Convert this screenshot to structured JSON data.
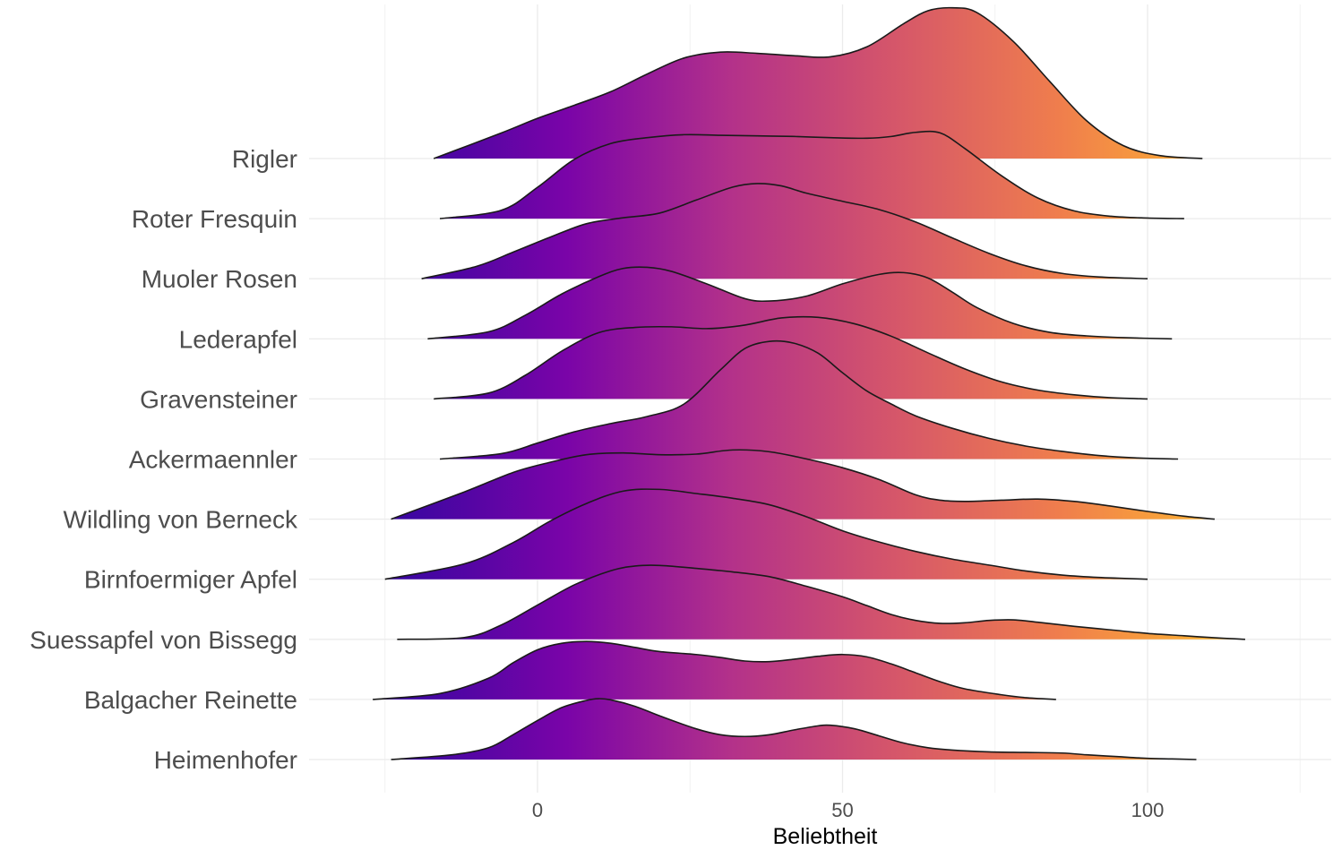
{
  "chart_data": {
    "type": "area",
    "subtype": "ridgeline",
    "xlabel": "Beliebtheit",
    "ylabel": "",
    "xlim": [
      -25,
      127
    ],
    "x_ticks": [
      0,
      50,
      100
    ],
    "grid": true,
    "legend": "none",
    "fill_gradient": [
      "#3b06a1",
      "#7a04a8",
      "#b3318a",
      "#d5566a",
      "#ef7d4d",
      "#fdb431"
    ],
    "outline_color": "#1a1a1a",
    "series": [
      {
        "name": "Heimenhofer",
        "x": [
          -24,
          -14,
          -8,
          -4,
          0,
          4,
          8,
          10,
          12,
          16,
          20,
          26,
          30,
          34,
          38,
          42,
          46,
          48,
          52,
          56,
          60,
          64,
          68,
          74,
          80,
          86,
          90,
          95,
          100,
          104,
          108
        ],
        "y": [
          0,
          0.08,
          0.2,
          0.42,
          0.66,
          0.88,
          1.0,
          1.03,
          1.01,
          0.9,
          0.74,
          0.52,
          0.42,
          0.39,
          0.42,
          0.5,
          0.57,
          0.58,
          0.52,
          0.4,
          0.28,
          0.2,
          0.16,
          0.13,
          0.12,
          0.11,
          0.08,
          0.05,
          0.02,
          0.01,
          0
        ]
      },
      {
        "name": "Balgacher Reinette",
        "x": [
          -27,
          -16,
          -8,
          -4,
          0,
          4,
          8,
          12,
          16,
          20,
          26,
          30,
          34,
          38,
          42,
          46,
          50,
          54,
          58,
          62,
          66,
          70,
          76,
          80,
          85
        ],
        "y": [
          0,
          0.1,
          0.36,
          0.62,
          0.84,
          0.95,
          0.98,
          0.95,
          0.88,
          0.81,
          0.76,
          0.71,
          0.65,
          0.64,
          0.68,
          0.73,
          0.76,
          0.72,
          0.6,
          0.45,
          0.3,
          0.18,
          0.08,
          0.03,
          0
        ]
      },
      {
        "name": "Suessapfel von Bissegg",
        "x": [
          -23,
          -12,
          -6,
          0,
          6,
          12,
          16,
          20,
          26,
          32,
          38,
          44,
          50,
          54,
          58,
          62,
          66,
          70,
          74,
          78,
          82,
          88,
          94,
          100,
          106,
          112,
          116
        ],
        "y": [
          0,
          0.03,
          0.24,
          0.58,
          0.92,
          1.16,
          1.24,
          1.25,
          1.2,
          1.14,
          1.06,
          0.9,
          0.72,
          0.57,
          0.42,
          0.32,
          0.27,
          0.28,
          0.32,
          0.33,
          0.29,
          0.22,
          0.16,
          0.1,
          0.06,
          0.02,
          0
        ]
      },
      {
        "name": "Birnfoermiger Apfel",
        "x": [
          -25,
          -12,
          -4,
          2,
          8,
          14,
          20,
          26,
          32,
          38,
          44,
          50,
          56,
          62,
          68,
          74,
          80,
          86,
          92,
          100
        ],
        "y": [
          0,
          0.26,
          0.62,
          0.98,
          1.28,
          1.49,
          1.52,
          1.45,
          1.37,
          1.26,
          1.06,
          0.82,
          0.63,
          0.47,
          0.34,
          0.24,
          0.14,
          0.07,
          0.03,
          0
        ]
      },
      {
        "name": "Wildling von Berneck",
        "x": [
          -24,
          -12,
          -4,
          2,
          8,
          14,
          20,
          26,
          32,
          38,
          44,
          50,
          56,
          62,
          66,
          70,
          76,
          82,
          88,
          94,
          100,
          106,
          111
        ],
        "y": [
          0,
          0.46,
          0.79,
          0.96,
          1.09,
          1.12,
          1.09,
          1.1,
          1.17,
          1.14,
          1.02,
          0.87,
          0.67,
          0.41,
          0.32,
          0.3,
          0.32,
          0.34,
          0.3,
          0.22,
          0.13,
          0.05,
          0
        ]
      },
      {
        "name": "Ackermaennler",
        "x": [
          -16,
          -6,
          0,
          6,
          12,
          18,
          24,
          30,
          34,
          38,
          42,
          46,
          50,
          54,
          58,
          62,
          68,
          74,
          80,
          86,
          92,
          98,
          105
        ],
        "y": [
          0,
          0.09,
          0.27,
          0.46,
          0.6,
          0.72,
          0.93,
          1.51,
          1.87,
          1.99,
          1.96,
          1.79,
          1.46,
          1.15,
          0.93,
          0.73,
          0.52,
          0.35,
          0.22,
          0.13,
          0.06,
          0.02,
          0
        ]
      },
      {
        "name": "Gravensteiner",
        "x": [
          -17,
          -8,
          -2,
          4,
          10,
          16,
          22,
          28,
          34,
          40,
          46,
          52,
          58,
          64,
          70,
          76,
          82,
          88,
          94,
          100
        ],
        "y": [
          0,
          0.1,
          0.4,
          0.81,
          1.12,
          1.21,
          1.22,
          1.19,
          1.25,
          1.37,
          1.38,
          1.27,
          1.06,
          0.78,
          0.51,
          0.29,
          0.15,
          0.07,
          0.02,
          0
        ]
      },
      {
        "name": "Lederapfel",
        "x": [
          -18,
          -8,
          -2,
          4,
          10,
          14,
          18,
          22,
          28,
          34,
          38,
          44,
          50,
          56,
          60,
          64,
          68,
          72,
          78,
          84,
          90,
          96,
          104
        ],
        "y": [
          0,
          0.12,
          0.4,
          0.76,
          1.05,
          1.19,
          1.21,
          1.14,
          0.92,
          0.68,
          0.64,
          0.72,
          0.93,
          1.09,
          1.12,
          1.03,
          0.79,
          0.53,
          0.26,
          0.11,
          0.05,
          0.02,
          0
        ]
      },
      {
        "name": "Muoler Rosen",
        "x": [
          -19,
          -10,
          -4,
          2,
          8,
          14,
          20,
          26,
          32,
          36,
          40,
          44,
          50,
          56,
          62,
          68,
          74,
          80,
          86,
          92,
          100
        ],
        "y": [
          0,
          0.21,
          0.45,
          0.7,
          0.93,
          1.03,
          1.11,
          1.33,
          1.55,
          1.61,
          1.57,
          1.45,
          1.31,
          1.17,
          0.96,
          0.69,
          0.43,
          0.22,
          0.09,
          0.03,
          0
        ]
      },
      {
        "name": "Roter Fresquin",
        "x": [
          -16,
          -6,
          0,
          6,
          12,
          18,
          24,
          30,
          36,
          42,
          48,
          54,
          58,
          62,
          66,
          70,
          76,
          82,
          88,
          94,
          100,
          106
        ],
        "y": [
          0,
          0.14,
          0.53,
          1.0,
          1.27,
          1.37,
          1.42,
          1.41,
          1.4,
          1.39,
          1.37,
          1.36,
          1.39,
          1.46,
          1.45,
          1.19,
          0.73,
          0.35,
          0.13,
          0.04,
          0.01,
          0
        ]
      },
      {
        "name": "Rigler",
        "x": [
          -17,
          -6,
          0,
          6,
          12,
          18,
          24,
          30,
          36,
          42,
          48,
          54,
          60,
          64,
          68,
          72,
          78,
          84,
          90,
          96,
          102,
          109
        ],
        "y": [
          0,
          0.43,
          0.68,
          0.9,
          1.13,
          1.43,
          1.7,
          1.8,
          1.78,
          1.74,
          1.72,
          1.89,
          2.28,
          2.5,
          2.55,
          2.47,
          1.98,
          1.3,
          0.64,
          0.22,
          0.05,
          0
        ]
      }
    ]
  }
}
